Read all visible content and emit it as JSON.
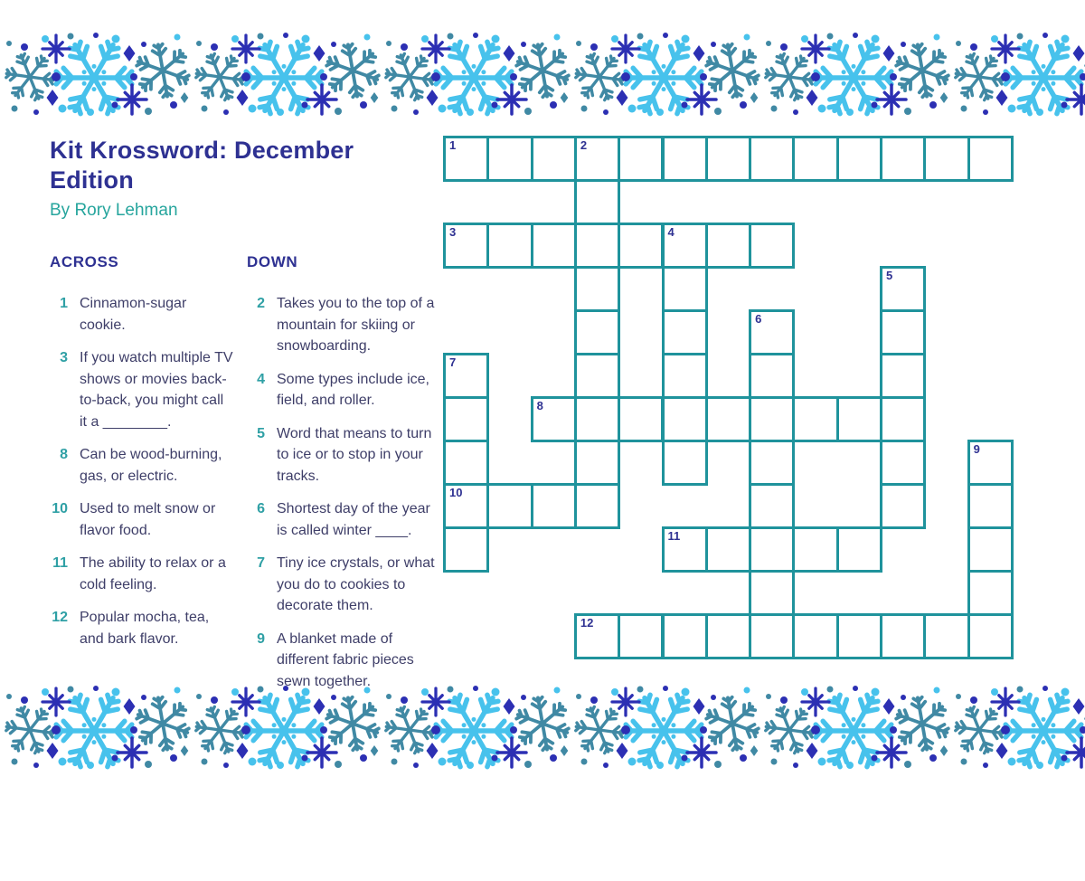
{
  "page": {
    "title": "Kit Krossword: December Edition",
    "byline": "By Rory Lehman"
  },
  "clues": {
    "across_heading": "ACROSS",
    "down_heading": "DOWN",
    "across": [
      {
        "number": "1",
        "text": "Cinnamon-sugar cookie."
      },
      {
        "number": "3",
        "text": "If you watch multiple TV shows or movies back-to-back, you might call it a ________."
      },
      {
        "number": "8",
        "text": "Can be wood-burning, gas, or electric."
      },
      {
        "number": "10",
        "text": "Used to melt snow or flavor food."
      },
      {
        "number": "11",
        "text": "The ability to relax or a cold feeling."
      },
      {
        "number": "12",
        "text": "Popular mocha, tea, and bark flavor."
      }
    ],
    "down": [
      {
        "number": "2",
        "text": "Takes you to the top of a mountain for skiing or snowboarding."
      },
      {
        "number": "4",
        "text": "Some types include ice, field, and roller."
      },
      {
        "number": "5",
        "text": "Word that means to turn to ice or to stop in your tracks."
      },
      {
        "number": "6",
        "text": "Shortest day of the year is called winter ____."
      },
      {
        "number": "7",
        "text": "Tiny ice crystals, or what you do to cookies to decorate them."
      },
      {
        "number": "9",
        "text": "A blanket made of different fabric pieces sewn together."
      }
    ]
  },
  "puzzle": {
    "rows": 12,
    "cols": 13,
    "cells_filled": false,
    "entries": [
      {
        "number": "1",
        "direction": "across",
        "row": 0,
        "col": 0,
        "length": 13
      },
      {
        "number": "2",
        "direction": "down",
        "row": 0,
        "col": 3,
        "length": 9
      },
      {
        "number": "3",
        "direction": "across",
        "row": 2,
        "col": 0,
        "length": 8
      },
      {
        "number": "4",
        "direction": "down",
        "row": 2,
        "col": 5,
        "length": 6
      },
      {
        "number": "5",
        "direction": "down",
        "row": 3,
        "col": 10,
        "length": 6
      },
      {
        "number": "6",
        "direction": "down",
        "row": 4,
        "col": 7,
        "length": 8
      },
      {
        "number": "7",
        "direction": "down",
        "row": 5,
        "col": 0,
        "length": 5
      },
      {
        "number": "8",
        "direction": "across",
        "row": 6,
        "col": 2,
        "length": 9
      },
      {
        "number": "9",
        "direction": "down",
        "row": 7,
        "col": 12,
        "length": 5
      },
      {
        "number": "10",
        "direction": "across",
        "row": 8,
        "col": 0,
        "length": 4
      },
      {
        "number": "11",
        "direction": "across",
        "row": 9,
        "col": 5,
        "length": 5
      },
      {
        "number": "12",
        "direction": "across",
        "row": 11,
        "col": 3,
        "length": 10
      }
    ]
  },
  "colors": {
    "title_indigo": "#2E3192",
    "clue_text_navy": "#3E3E68",
    "clue_number_teal": "#2FA0A5",
    "byline_teal": "#26A59D",
    "grid_line_teal": "#1F939C",
    "flake_cyan": "#47C2EC",
    "flake_steel_teal": "#4089A4",
    "flake_indigo": "#2C2FB3",
    "background": "#FFFFFF"
  }
}
